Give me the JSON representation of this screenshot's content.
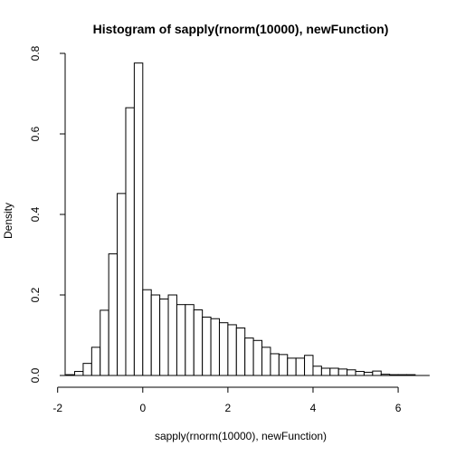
{
  "chart_data": {
    "type": "bar",
    "title": "Histogram of sapply(rnorm(10000), newFunction)",
    "xlabel": "sapply(rnorm(10000), newFunction)",
    "ylabel": "Density",
    "xlim": [
      -2.1,
      6.7
    ],
    "ylim": [
      0,
      0.8
    ],
    "x_ticks": [
      -2,
      0,
      2,
      4,
      6
    ],
    "x_tick_labels": [
      "-2",
      "0",
      "2",
      "4",
      "6"
    ],
    "y_ticks": [
      0,
      0.2,
      0.4,
      0.6,
      0.8
    ],
    "y_tick_labels": [
      "0.0",
      "0.2",
      "0.4",
      "0.6",
      "0.8"
    ],
    "bin_width": 0.2,
    "bins": [
      {
        "x0": -1.8,
        "density": 0.002
      },
      {
        "x0": -1.6,
        "density": 0.01
      },
      {
        "x0": -1.4,
        "density": 0.03
      },
      {
        "x0": -1.2,
        "density": 0.07
      },
      {
        "x0": -1.0,
        "density": 0.162
      },
      {
        "x0": -0.8,
        "density": 0.302
      },
      {
        "x0": -0.6,
        "density": 0.452
      },
      {
        "x0": -0.4,
        "density": 0.665
      },
      {
        "x0": -0.2,
        "density": 0.776
      },
      {
        "x0": 0.0,
        "density": 0.213
      },
      {
        "x0": 0.2,
        "density": 0.2
      },
      {
        "x0": 0.4,
        "density": 0.19
      },
      {
        "x0": 0.6,
        "density": 0.2
      },
      {
        "x0": 0.8,
        "density": 0.176
      },
      {
        "x0": 1.0,
        "density": 0.176
      },
      {
        "x0": 1.2,
        "density": 0.163
      },
      {
        "x0": 1.4,
        "density": 0.145
      },
      {
        "x0": 1.6,
        "density": 0.141
      },
      {
        "x0": 1.8,
        "density": 0.131
      },
      {
        "x0": 2.0,
        "density": 0.126
      },
      {
        "x0": 2.2,
        "density": 0.118
      },
      {
        "x0": 2.4,
        "density": 0.093
      },
      {
        "x0": 2.6,
        "density": 0.087
      },
      {
        "x0": 2.8,
        "density": 0.07
      },
      {
        "x0": 3.0,
        "density": 0.054
      },
      {
        "x0": 3.2,
        "density": 0.052
      },
      {
        "x0": 3.4,
        "density": 0.043
      },
      {
        "x0": 3.6,
        "density": 0.043
      },
      {
        "x0": 3.8,
        "density": 0.05
      },
      {
        "x0": 4.0,
        "density": 0.023
      },
      {
        "x0": 4.2,
        "density": 0.018
      },
      {
        "x0": 4.4,
        "density": 0.018
      },
      {
        "x0": 4.6,
        "density": 0.016
      },
      {
        "x0": 4.8,
        "density": 0.014
      },
      {
        "x0": 5.0,
        "density": 0.01
      },
      {
        "x0": 5.2,
        "density": 0.008
      },
      {
        "x0": 5.4,
        "density": 0.011
      },
      {
        "x0": 5.6,
        "density": 0.003
      },
      {
        "x0": 5.8,
        "density": 0.002
      },
      {
        "x0": 6.0,
        "density": 0.002
      },
      {
        "x0": 6.2,
        "density": 0.002
      }
    ]
  }
}
